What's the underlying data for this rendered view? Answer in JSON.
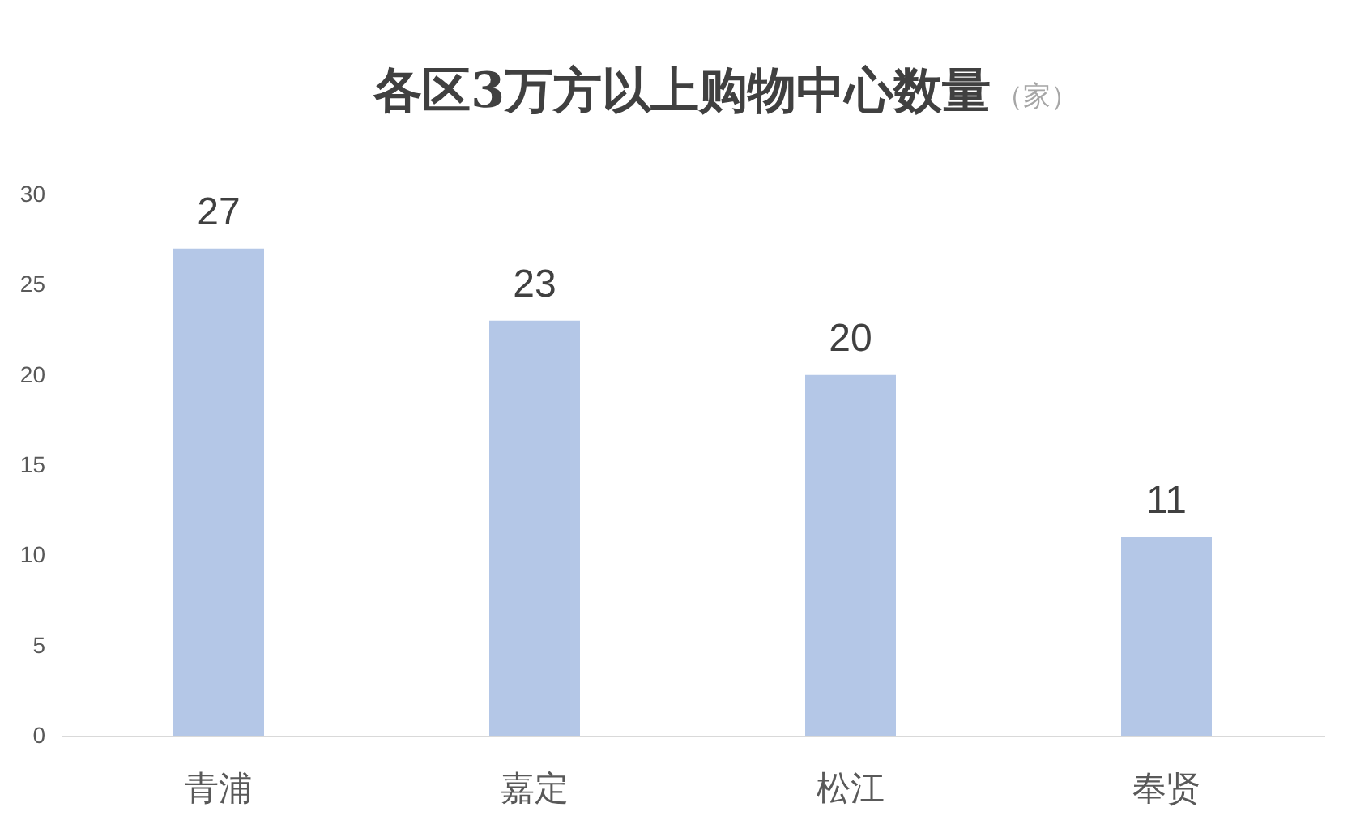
{
  "chart_data": {
    "type": "bar",
    "title": "各区3万方以上购物中心数量",
    "subtitle": "（家）",
    "categories": [
      "青浦",
      "嘉定",
      "松江",
      "奉贤"
    ],
    "values": [
      27,
      23,
      20,
      11
    ],
    "color": "#b4c7e7",
    "ylim": [
      0,
      30
    ],
    "yticks": [
      0,
      5,
      10,
      15,
      20,
      25,
      30
    ],
    "data_labels": true,
    "grid": false
  }
}
